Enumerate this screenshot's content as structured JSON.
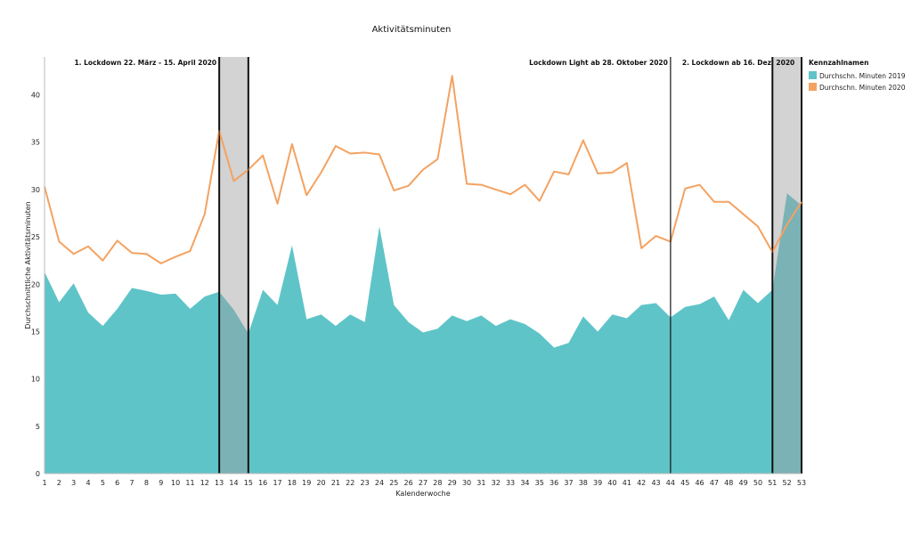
{
  "chart_data": {
    "type": "area",
    "title": "Aktivitätsminuten",
    "xlabel": "Kalenderwoche",
    "ylabel": "Durchschnittliche Aktivitätsminuten",
    "ylim": [
      0,
      44
    ],
    "yticks": [
      0,
      5,
      10,
      15,
      20,
      25,
      30,
      35,
      40
    ],
    "x": [
      1,
      2,
      3,
      4,
      5,
      6,
      7,
      8,
      9,
      10,
      11,
      12,
      13,
      14,
      15,
      16,
      17,
      18,
      19,
      20,
      21,
      22,
      23,
      24,
      25,
      26,
      27,
      28,
      29,
      30,
      31,
      32,
      33,
      34,
      35,
      36,
      37,
      38,
      39,
      40,
      41,
      42,
      43,
      44,
      45,
      46,
      47,
      48,
      49,
      50,
      51,
      52,
      53
    ],
    "legend": {
      "title": "Kennzahlnamen",
      "position": "right"
    },
    "series": [
      {
        "name": "Durchschn. Minuten 2019",
        "type": "area",
        "color": "#5fc4c8",
        "values": [
          21.3,
          18.1,
          20.1,
          17.0,
          15.6,
          17.4,
          19.6,
          19.3,
          18.9,
          19.0,
          17.4,
          18.7,
          19.2,
          17.3,
          14.8,
          19.4,
          17.8,
          24.1,
          16.3,
          16.8,
          15.6,
          16.8,
          16.0,
          26.1,
          17.8,
          16.0,
          14.9,
          15.3,
          16.7,
          16.1,
          16.7,
          15.6,
          16.3,
          15.8,
          14.8,
          13.3,
          13.8,
          16.6,
          15.0,
          16.8,
          16.4,
          17.8,
          18.0,
          16.5,
          17.6,
          17.9,
          18.7,
          16.2,
          19.4,
          18.0,
          19.4,
          29.6,
          28.3
        ]
      },
      {
        "name": "Durchschn. Minuten 2020",
        "type": "line",
        "color": "#f4a261",
        "values": [
          30.3,
          24.5,
          23.2,
          24.0,
          22.5,
          24.6,
          23.3,
          23.2,
          22.2,
          22.9,
          23.5,
          27.4,
          36.2,
          30.9,
          32.1,
          33.6,
          28.5,
          34.8,
          29.4,
          31.8,
          34.6,
          33.8,
          33.9,
          33.7,
          29.9,
          30.4,
          32.1,
          33.2,
          42.0,
          30.6,
          30.5,
          30.0,
          29.5,
          30.5,
          28.8,
          31.9,
          31.6,
          35.2,
          31.7,
          31.8,
          32.8,
          23.8,
          25.1,
          24.5,
          30.1,
          30.5,
          28.7,
          28.7,
          27.4,
          26.1,
          23.4,
          26.3,
          28.7
        ]
      }
    ],
    "shaded_periods": [
      {
        "from": 13,
        "to": 15,
        "color": "#9e9e9e"
      },
      {
        "from": 51,
        "to": 53,
        "color": "#9e9e9e"
      }
    ],
    "annotations": [
      {
        "at": 13,
        "label": "1. Lockdown 22. März - 15. April 2020",
        "anchor": "end"
      },
      {
        "at": 15,
        "label": "",
        "anchor": "none"
      },
      {
        "at": 44,
        "label": "Lockdown Light ab 28. Oktober 2020",
        "anchor": "end"
      },
      {
        "at": 44,
        "label": "2. Lockdown ab 16. Dez. 2020",
        "anchor": "start"
      },
      {
        "at": 51,
        "label": "",
        "anchor": "none"
      }
    ],
    "grid": false
  }
}
